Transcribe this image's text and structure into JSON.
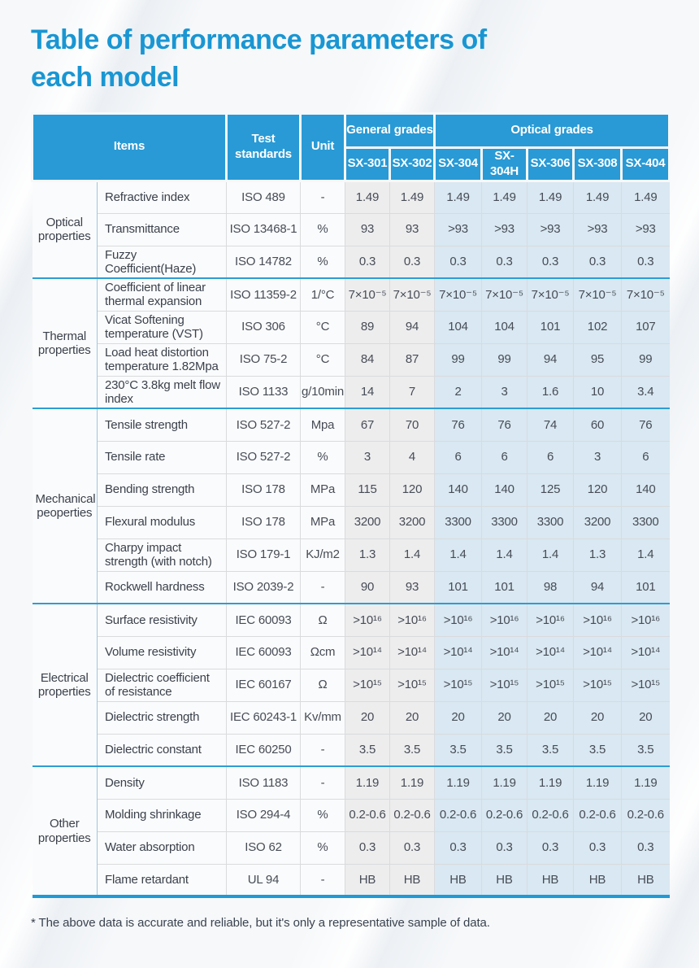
{
  "page": {
    "title_lines": [
      "Table of performance parameters of",
      "each model"
    ],
    "footnote": "* The above data is accurate and reliable, but it's only a representative sample of data.",
    "colors": {
      "title_blue": "#1996D3",
      "header_blue": "#299AD5",
      "section_divider_blue": "#2D9DD3",
      "bottom_border_blue": "#1E9AD6",
      "general_cell_bg": "#EDEDEE",
      "optical_cell_bg": "#D9E8F2",
      "label_cell_bg": "#FAFBFC",
      "body_text": "#474C56"
    }
  },
  "table": {
    "header": {
      "items_label": "Items",
      "test_standards_label": "Test standards",
      "unit_label": "Unit",
      "groups": [
        {
          "label": "General grades",
          "models": [
            "SX-301",
            "SX-302"
          ]
        },
        {
          "label": "Optical grades",
          "models": [
            "SX-304",
            "SX-304H",
            "SX-306",
            "SX-308",
            "SX-404"
          ]
        }
      ]
    },
    "sections": [
      {
        "category": "Optical properties",
        "rows": [
          {
            "item": "Refractive index",
            "standard": "ISO 489",
            "unit": "-",
            "values": [
              "1.49",
              "1.49",
              "1.49",
              "1.49",
              "1.49",
              "1.49",
              "1.49"
            ]
          },
          {
            "item": "Transmittance",
            "standard": "ISO 13468-1",
            "unit": "%",
            "values": [
              "93",
              "93",
              ">93",
              ">93",
              ">93",
              ">93",
              ">93"
            ]
          },
          {
            "item": "Fuzzy Coefficient(Haze)",
            "standard": "ISO 14782",
            "unit": "%",
            "values": [
              "0.3",
              "0.3",
              "0.3",
              "0.3",
              "0.3",
              "0.3",
              "0.3"
            ]
          }
        ]
      },
      {
        "category": "Thermal properties",
        "rows": [
          {
            "item": "Coefficient of linear thermal expansion",
            "standard": "ISO 11359-2",
            "unit": "1/°C",
            "values": [
              "7×10⁻⁵",
              "7×10⁻⁵",
              "7×10⁻⁵",
              "7×10⁻⁵",
              "7×10⁻⁵",
              "7×10⁻⁵",
              "7×10⁻⁵"
            ]
          },
          {
            "item": "Vicat Softening temperature (VST)",
            "standard": "ISO 306",
            "unit": "°C",
            "values": [
              "89",
              "94",
              "104",
              "104",
              "101",
              "102",
              "107"
            ]
          },
          {
            "item": "Load heat distortion temperature 1.82Mpa",
            "standard": "ISO 75-2",
            "unit": "°C",
            "values": [
              "84",
              "87",
              "99",
              "99",
              "94",
              "95",
              "99"
            ]
          },
          {
            "item": "230°C 3.8kg melt flow index",
            "standard": "ISO 1133",
            "unit": "g/10min",
            "values": [
              "14",
              "7",
              "2",
              "3",
              "1.6",
              "10",
              "3.4"
            ]
          }
        ]
      },
      {
        "category": "Mechanical peoperties",
        "rows": [
          {
            "item": "Tensile strength",
            "standard": "ISO 527-2",
            "unit": "Mpa",
            "values": [
              "67",
              "70",
              "76",
              "76",
              "74",
              "60",
              "76"
            ]
          },
          {
            "item": "Tensile rate",
            "standard": "ISO 527-2",
            "unit": "%",
            "values": [
              "3",
              "4",
              "6",
              "6",
              "6",
              "3",
              "6"
            ]
          },
          {
            "item": "Bending strength",
            "standard": "ISO 178",
            "unit": "MPa",
            "values": [
              "115",
              "120",
              "140",
              "140",
              "125",
              "120",
              "140"
            ]
          },
          {
            "item": "Flexural modulus",
            "standard": "ISO 178",
            "unit": "MPa",
            "values": [
              "3200",
              "3200",
              "3300",
              "3300",
              "3300",
              "3200",
              "3300"
            ]
          },
          {
            "item": "Charpy impact strength (with notch)",
            "standard": "ISO 179-1",
            "unit": "KJ/m2",
            "values": [
              "1.3",
              "1.4",
              "1.4",
              "1.4",
              "1.4",
              "1.3",
              "1.4"
            ]
          },
          {
            "item": "Rockwell hardness",
            "standard": "ISO 2039-2",
            "unit": "-",
            "values": [
              "90",
              "93",
              "101",
              "101",
              "98",
              "94",
              "101"
            ]
          }
        ]
      },
      {
        "category": "Electrical properties",
        "rows": [
          {
            "item": "Surface resistivity",
            "standard": "IEC 60093",
            "unit": "Ω",
            "values": [
              ">10¹⁶",
              ">10¹⁶",
              ">10¹⁶",
              ">10¹⁶",
              ">10¹⁶",
              ">10¹⁶",
              ">10¹⁶"
            ]
          },
          {
            "item": "Volume resistivity",
            "standard": "IEC 60093",
            "unit": "Ωcm",
            "values": [
              ">10¹⁴",
              ">10¹⁴",
              ">10¹⁴",
              ">10¹⁴",
              ">10¹⁴",
              ">10¹⁴",
              ">10¹⁴"
            ]
          },
          {
            "item": "Dielectric coefficient of resistance",
            "standard": "IEC 60167",
            "unit": "Ω",
            "values": [
              ">10¹⁵",
              ">10¹⁵",
              ">10¹⁵",
              ">10¹⁵",
              ">10¹⁵",
              ">10¹⁵",
              ">10¹⁵"
            ]
          },
          {
            "item": "Dielectric strength",
            "standard": "IEC 60243-1",
            "unit": "Kv/mm",
            "values": [
              "20",
              "20",
              "20",
              "20",
              "20",
              "20",
              "20"
            ]
          },
          {
            "item": "Dielectric constant",
            "standard": "IEC 60250",
            "unit": "-",
            "values": [
              "3.5",
              "3.5",
              "3.5",
              "3.5",
              "3.5",
              "3.5",
              "3.5"
            ]
          }
        ]
      },
      {
        "category": "Other properties",
        "rows": [
          {
            "item": "Density",
            "standard": "ISO 1183",
            "unit": "-",
            "values": [
              "1.19",
              "1.19",
              "1.19",
              "1.19",
              "1.19",
              "1.19",
              "1.19"
            ]
          },
          {
            "item": "Molding shrinkage",
            "standard": "ISO 294-4",
            "unit": "%",
            "values": [
              "0.2-0.6",
              "0.2-0.6",
              "0.2-0.6",
              "0.2-0.6",
              "0.2-0.6",
              "0.2-0.6",
              "0.2-0.6"
            ]
          },
          {
            "item": "Water absorption",
            "standard": "ISO 62",
            "unit": "%",
            "values": [
              "0.3",
              "0.3",
              "0.3",
              "0.3",
              "0.3",
              "0.3",
              "0.3"
            ]
          },
          {
            "item": "Flame retardant",
            "standard": "UL 94",
            "unit": "-",
            "values": [
              "HB",
              "HB",
              "HB",
              "HB",
              "HB",
              "HB",
              "HB"
            ]
          }
        ]
      }
    ]
  }
}
